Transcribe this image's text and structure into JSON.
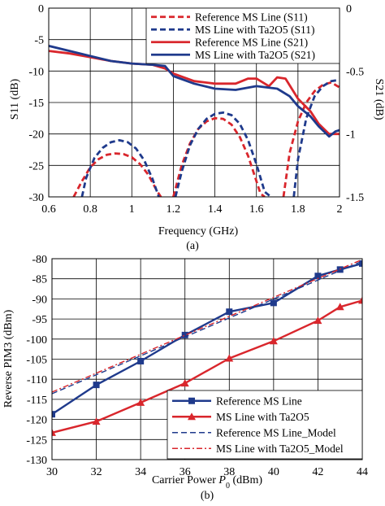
{
  "colors": {
    "red": "#d9262c",
    "blue": "#1f3a8c"
  },
  "chart_data": [
    {
      "type": "line",
      "panel_label": "(a)",
      "xlabel": "Frequency (GHz)",
      "ylabel": "S11 (dB)",
      "y2label": "S21 (dB)",
      "xlim": [
        0.6,
        2.0
      ],
      "ylim": [
        -30,
        0
      ],
      "y2lim": [
        -1.5,
        0
      ],
      "xticks": [
        0.6,
        0.8,
        1.0,
        1.2,
        1.4,
        1.6,
        1.8,
        2.0
      ],
      "xtick_labels": [
        "0.6",
        "0.8",
        "1",
        "1.2",
        "1.4",
        "1.6",
        "1.8",
        "2"
      ],
      "yticks": [
        -30,
        -25,
        -20,
        -15,
        -10,
        -5,
        0
      ],
      "ytick_labels": [
        "-30",
        "-25",
        "-20",
        "-15",
        "-10",
        "-5",
        "0"
      ],
      "y2ticks": [
        -1.5,
        -1,
        -0.5,
        0
      ],
      "y2tick_labels": [
        "-1.5",
        "-1",
        "-0.5",
        "0"
      ],
      "grid": true,
      "legend_position": "top-right",
      "series": [
        {
          "name": "Reference MS Line (S11)",
          "color": "red",
          "style": "dashed",
          "axis": "left",
          "x": [
            0.72,
            0.76,
            0.8,
            0.84,
            0.88,
            0.92,
            0.96,
            1.0,
            1.04,
            1.08,
            1.12,
            1.14
          ],
          "y": [
            -30,
            -27.5,
            -25.3,
            -24.0,
            -23.3,
            -23.1,
            -23.2,
            -23.7,
            -24.8,
            -26.5,
            -29.0,
            -30
          ],
          "segments": [
            {
              "x": [
                0.72,
                0.76,
                0.8,
                0.84,
                0.88,
                0.92,
                0.96,
                1.0,
                1.04,
                1.08,
                1.12,
                1.14
              ],
              "y": [
                -30,
                -27.5,
                -25.3,
                -24.0,
                -23.3,
                -23.1,
                -23.2,
                -23.7,
                -24.8,
                -26.5,
                -29.0,
                -30
              ]
            },
            {
              "x": [
                1.2,
                1.24,
                1.28,
                1.32,
                1.36,
                1.4,
                1.44,
                1.48,
                1.52,
                1.56,
                1.6,
                1.62,
                1.64
              ],
              "y": [
                -30,
                -25.0,
                -21.5,
                -19.2,
                -18.0,
                -17.5,
                -17.6,
                -18.5,
                -20.5,
                -23.5,
                -27.5,
                -29.5,
                -30
              ]
            },
            {
              "x": [
                1.73,
                1.76,
                1.8,
                1.84,
                1.88,
                1.92,
                1.96,
                2.0
              ],
              "y": [
                -30,
                -23.0,
                -18.0,
                -15.0,
                -13.2,
                -12.2,
                -11.8,
                -12.6
              ]
            }
          ]
        },
        {
          "name": "MS Line with Ta2O5 (S11)",
          "color": "blue",
          "style": "dashed",
          "axis": "left",
          "segments": [
            {
              "x": [
                0.76,
                0.78,
                0.82,
                0.86,
                0.9,
                0.94,
                0.98,
                1.02,
                1.06,
                1.1,
                1.13
              ],
              "y": [
                -30,
                -27.0,
                -23.8,
                -22.2,
                -21.3,
                -21.0,
                -21.3,
                -22.3,
                -24.2,
                -27.2,
                -30
              ]
            },
            {
              "x": [
                1.21,
                1.24,
                1.28,
                1.32,
                1.36,
                1.4,
                1.44,
                1.48,
                1.52,
                1.56,
                1.6,
                1.64,
                1.67
              ],
              "y": [
                -30,
                -26.0,
                -21.8,
                -19.2,
                -17.6,
                -16.8,
                -16.6,
                -17.0,
                -18.4,
                -21.0,
                -24.8,
                -29.2,
                -30
              ]
            },
            {
              "x": [
                1.78,
                1.8,
                1.84,
                1.88,
                1.92,
                1.96,
                2.0
              ],
              "y": [
                -30,
                -24.0,
                -17.5,
                -14.0,
                -12.4,
                -11.6,
                -11.4
              ]
            }
          ]
        },
        {
          "name": "Reference MS Line (S21)",
          "color": "red",
          "style": "solid",
          "axis": "right",
          "x": [
            0.6,
            0.7,
            0.8,
            0.9,
            1.0,
            1.1,
            1.16,
            1.2,
            1.3,
            1.4,
            1.5,
            1.56,
            1.6,
            1.66,
            1.7,
            1.74,
            1.8,
            1.86,
            1.9,
            1.95,
            2.0
          ],
          "y": [
            -0.34,
            -0.36,
            -0.39,
            -0.42,
            -0.44,
            -0.45,
            -0.48,
            -0.52,
            -0.58,
            -0.6,
            -0.6,
            -0.56,
            -0.56,
            -0.62,
            -0.55,
            -0.56,
            -0.72,
            -0.82,
            -0.92,
            -1.0,
            -1.0
          ]
        },
        {
          "name": "MS Line with Ta2O5 (S21)",
          "color": "blue",
          "style": "solid",
          "axis": "right",
          "x": [
            0.6,
            0.7,
            0.8,
            0.9,
            1.0,
            1.1,
            1.16,
            1.2,
            1.3,
            1.4,
            1.5,
            1.6,
            1.7,
            1.76,
            1.8,
            1.86,
            1.9,
            1.95,
            1.98,
            2.0
          ],
          "y": [
            -0.3,
            -0.34,
            -0.38,
            -0.42,
            -0.44,
            -0.45,
            -0.46,
            -0.54,
            -0.6,
            -0.64,
            -0.65,
            -0.62,
            -0.64,
            -0.7,
            -0.78,
            -0.86,
            -0.94,
            -1.02,
            -0.98,
            -0.97
          ]
        }
      ]
    },
    {
      "type": "line",
      "panel_label": "(b)",
      "xlabel": "Carrier Power P0 (dBm)",
      "xlabel_prefix": "Carrier Power ",
      "xlabel_var": "P",
      "xlabel_sub": "0",
      "xlabel_suffix": " (dBm)",
      "ylabel": "Reverse PIM3 (dBm)",
      "xlim": [
        30,
        44
      ],
      "ylim": [
        -130,
        -80
      ],
      "xticks": [
        30,
        32,
        34,
        36,
        38,
        40,
        42,
        44
      ],
      "xtick_labels": [
        "30",
        "32",
        "34",
        "36",
        "38",
        "40",
        "42",
        "44"
      ],
      "yticks": [
        -130,
        -125,
        -120,
        -115,
        -110,
        -105,
        -100,
        -95,
        -90,
        -85,
        -80
      ],
      "ytick_labels": [
        "-130",
        "-125",
        "-120",
        "-115",
        "-110",
        "-105",
        "-100",
        "-95",
        "-90",
        "-85",
        "-80"
      ],
      "grid": true,
      "legend_position": "bottom-right",
      "series": [
        {
          "name": "Reference MS Line",
          "color": "blue",
          "style": "solid",
          "marker": "square",
          "x": [
            30,
            32,
            34,
            36,
            38,
            40,
            42,
            43,
            44
          ],
          "y": [
            -118.7,
            -111.4,
            -105.5,
            -99.0,
            -93.2,
            -91.0,
            -84.3,
            -82.7,
            -81.2
          ]
        },
        {
          "name": "MS Line with Ta2O5",
          "color": "red",
          "style": "solid",
          "marker": "triangle",
          "x": [
            30,
            32,
            34,
            36,
            38,
            40,
            42,
            43,
            44
          ],
          "y": [
            -123.3,
            -120.5,
            -115.8,
            -111.0,
            -104.8,
            -100.5,
            -95.4,
            -92.0,
            -90.4
          ]
        },
        {
          "name": "Reference MS Line_Model",
          "color": "blue",
          "style": "dashed",
          "x": [
            30,
            44
          ],
          "y": [
            -113.6,
            -80.6
          ]
        },
        {
          "name": "MS Line with Ta2O5_Model",
          "color": "red",
          "style": "dashdot",
          "x": [
            30,
            44
          ],
          "y": [
            -113.2,
            -80.2
          ]
        }
      ]
    }
  ]
}
